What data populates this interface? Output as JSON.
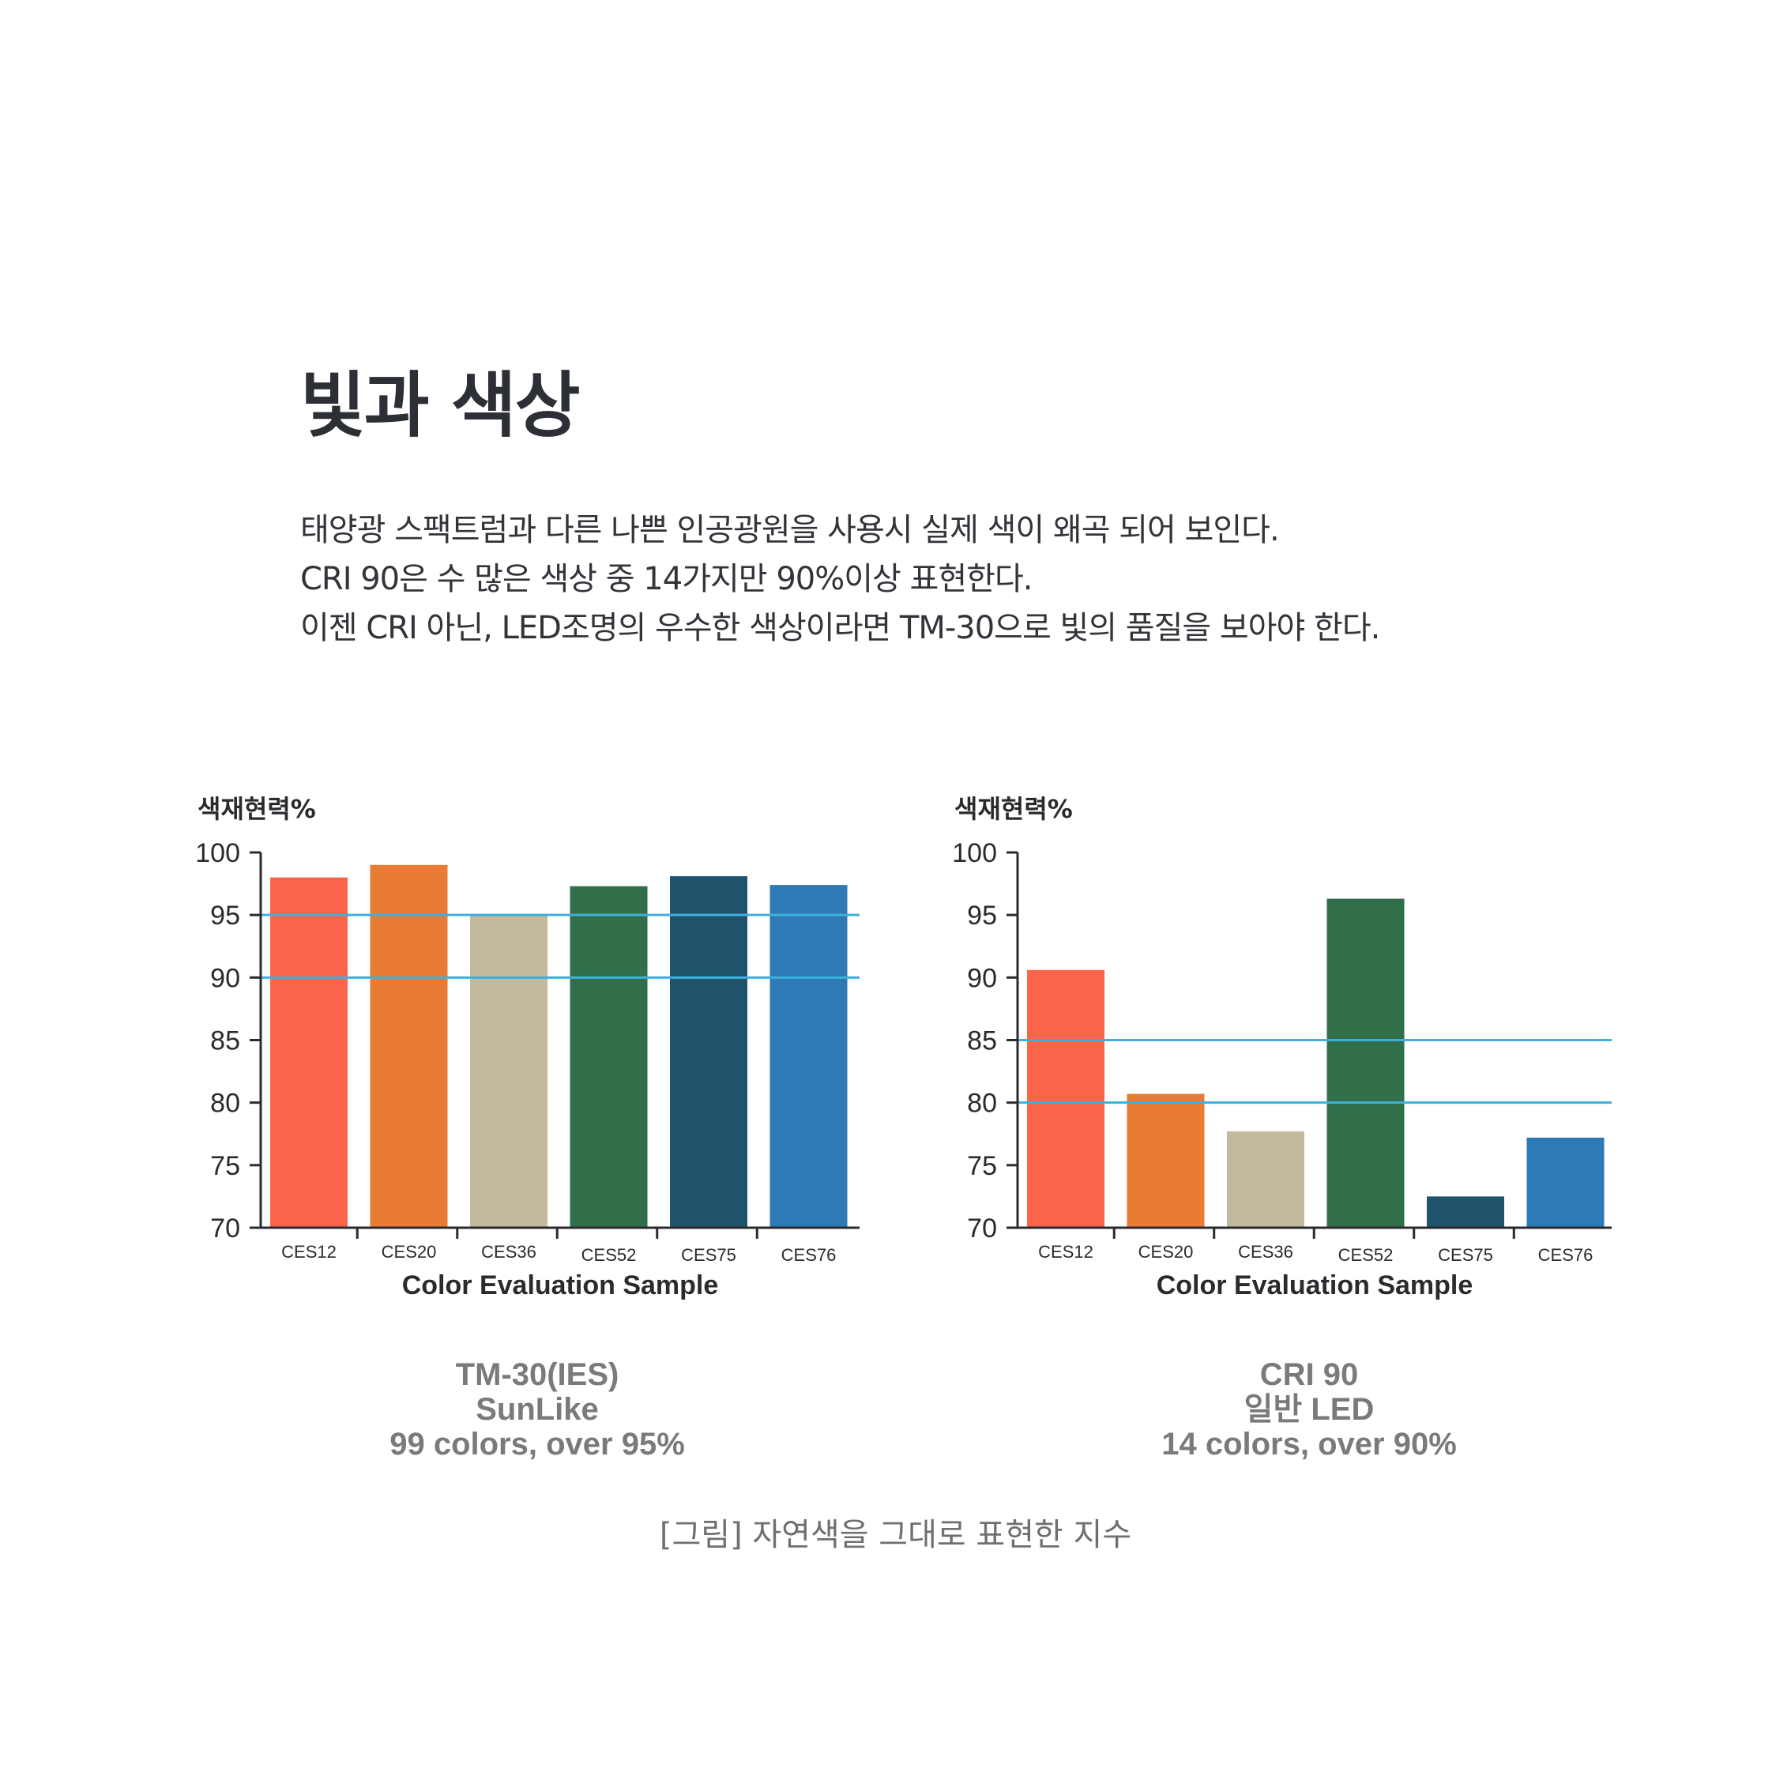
{
  "page": {
    "title": "빛과 색상",
    "description": [
      "태양광 스팩트럼과 다른 나쁜 인공광원을 사용시 실제 색이 왜곡 되어 보인다.",
      "CRI 90은 수 많은 색상 중 14가지만 90%이상 표현한다.",
      "이젠 CRI 아닌, LED조명의 우수한 색상이라면 TM-30으로 빛의 품질을 보아야 한다."
    ],
    "figure_caption": "[그림] 자연색을 그대로 표현한 지수"
  },
  "colors": {
    "CES12": "#f9644a",
    "CES20": "#ea7b35",
    "CES36": "#c3b99c",
    "CES52": "#316e4a",
    "CES75": "#1f526b",
    "CES76": "#2d7ab5",
    "reference_line": "#3eb0e0",
    "axis": "#2b2b2f"
  },
  "chart_data": [
    {
      "type": "bar",
      "ylabel": "색재현력%",
      "xlabel": "Color Evaluation Sample",
      "categories": [
        "CES12",
        "CES20",
        "CES36",
        "CES52",
        "CES75",
        "CES76"
      ],
      "values": [
        98,
        99,
        95,
        97.3,
        98.1,
        97.4
      ],
      "ylim": [
        70,
        100
      ],
      "yticks": [
        100,
        95,
        90,
        85,
        80,
        75,
        70
      ],
      "reference_lines": [
        95,
        90
      ],
      "caption": [
        "TM-30(IES)",
        "SunLike",
        "99 colors, over 95%"
      ]
    },
    {
      "type": "bar",
      "ylabel": "색재현력%",
      "xlabel": "Color Evaluation Sample",
      "categories": [
        "CES12",
        "CES20",
        "CES36",
        "CES52",
        "CES75",
        "CES76"
      ],
      "values": [
        90.6,
        80.7,
        77.7,
        96.3,
        72.5,
        77.2
      ],
      "ylim": [
        70,
        100
      ],
      "yticks": [
        100,
        95,
        90,
        85,
        80,
        75,
        70
      ],
      "reference_lines": [
        85,
        80
      ],
      "caption": [
        "CRI 90",
        "일반 LED",
        "14 colors, over 90%"
      ]
    }
  ]
}
